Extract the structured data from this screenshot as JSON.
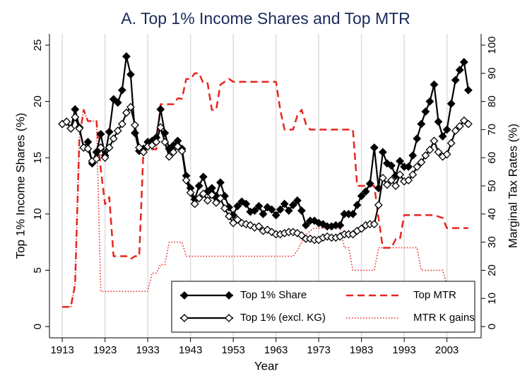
{
  "chart_data": {
    "type": "line",
    "title": "A. Top 1% Income Shares and Top MTR",
    "xlabel": "Year",
    "ylabel": "Top 1% Income Shares (%)",
    "y2label": "Marginal Tax Rates (%)",
    "x": [
      1913,
      1914,
      1915,
      1916,
      1917,
      1918,
      1919,
      1920,
      1921,
      1922,
      1923,
      1924,
      1925,
      1926,
      1927,
      1928,
      1929,
      1930,
      1931,
      1932,
      1933,
      1934,
      1935,
      1936,
      1937,
      1938,
      1939,
      1940,
      1941,
      1942,
      1943,
      1944,
      1945,
      1946,
      1947,
      1948,
      1949,
      1950,
      1951,
      1952,
      1953,
      1954,
      1955,
      1956,
      1957,
      1958,
      1959,
      1960,
      1961,
      1962,
      1963,
      1964,
      1965,
      1966,
      1967,
      1968,
      1969,
      1970,
      1971,
      1972,
      1973,
      1974,
      1975,
      1976,
      1977,
      1978,
      1979,
      1980,
      1981,
      1982,
      1983,
      1984,
      1985,
      1986,
      1987,
      1988,
      1989,
      1990,
      1991,
      1992,
      1993,
      1994,
      1995,
      1996,
      1997,
      1998,
      1999,
      2000,
      2001,
      2002,
      2003,
      2004,
      2005,
      2006,
      2007,
      2008
    ],
    "series": [
      {
        "name": "Top 1% Share",
        "color": "#000000",
        "style": "solid",
        "marker": "diamond-filled",
        "axis": "y",
        "values": [
          18.0,
          18.2,
          17.6,
          19.3,
          17.7,
          15.9,
          16.4,
          14.5,
          15.5,
          17.1,
          15.2,
          17.3,
          20.2,
          19.9,
          21.0,
          24.0,
          22.4,
          17.2,
          15.6,
          15.8,
          16.4,
          16.5,
          16.8,
          19.3,
          17.2,
          15.8,
          16.1,
          16.5,
          15.8,
          13.4,
          12.3,
          11.3,
          12.5,
          13.3,
          12.0,
          12.3,
          11.6,
          12.8,
          11.6,
          10.6,
          9.9,
          10.7,
          11.1,
          10.9,
          10.2,
          10.3,
          10.7,
          10.0,
          10.6,
          10.4,
          9.9,
          10.4,
          10.9,
          10.3,
          10.8,
          11.2,
          10.3,
          9.0,
          9.4,
          9.4,
          9.2,
          9.1,
          8.9,
          8.9,
          9.0,
          9.0,
          10.0,
          10.0,
          10.0,
          10.8,
          11.6,
          12.0,
          12.7,
          15.9,
          12.3,
          15.5,
          14.5,
          14.3,
          13.4,
          14.7,
          14.2,
          14.2,
          15.2,
          16.7,
          18.0,
          19.1,
          20.0,
          21.5,
          18.2,
          16.9,
          17.5,
          19.8,
          21.9,
          22.8,
          23.5,
          21.0
        ]
      },
      {
        "name": "Top 1% (excl. KG)",
        "color": "#000000",
        "style": "solid",
        "marker": "diamond-hollow",
        "axis": "y",
        "values": [
          18.0,
          18.2,
          17.6,
          18.6,
          17.6,
          15.9,
          15.8,
          14.7,
          14.9,
          15.9,
          15.0,
          15.9,
          16.7,
          17.4,
          18.0,
          19.0,
          19.5,
          17.9,
          15.9,
          15.5,
          16.0,
          16.1,
          16.4,
          17.7,
          16.4,
          15.1,
          15.5,
          16.0,
          15.6,
          13.0,
          11.9,
          10.9,
          11.4,
          11.8,
          11.2,
          11.7,
          11.0,
          11.4,
          10.5,
          9.8,
          9.2,
          9.5,
          9.2,
          9.1,
          9.0,
          8.8,
          8.9,
          8.5,
          8.6,
          8.4,
          8.2,
          8.2,
          8.3,
          8.4,
          8.4,
          8.3,
          8.1,
          7.8,
          7.8,
          7.7,
          7.7,
          7.9,
          8.0,
          7.9,
          7.9,
          8.0,
          8.2,
          8.2,
          8.2,
          8.5,
          8.7,
          9.0,
          9.1,
          9.1,
          10.8,
          13.2,
          12.6,
          13.0,
          12.5,
          13.5,
          12.9,
          13.0,
          13.5,
          14.2,
          14.6,
          15.2,
          15.7,
          16.5,
          15.5,
          15.1,
          15.3,
          16.3,
          17.4,
          17.8,
          18.3,
          18.0
        ]
      },
      {
        "name": "Top MTR",
        "color": "#e8251f",
        "style": "dashed",
        "axis": "y2",
        "values": [
          7,
          7,
          7,
          15,
          67,
          77,
          73,
          73,
          73,
          56,
          43.5,
          46,
          25,
          25,
          25,
          25,
          24,
          25,
          25,
          63,
          63,
          63,
          63,
          79,
          79,
          79,
          79,
          81.1,
          81,
          88,
          88,
          90,
          90,
          86.5,
          86.5,
          77,
          77,
          86,
          87,
          88,
          87,
          87,
          87,
          87,
          87,
          87,
          87,
          87,
          87,
          87,
          87,
          77,
          70,
          70,
          70,
          75,
          77,
          72,
          70,
          70,
          70,
          70,
          70,
          70,
          70,
          70,
          70,
          70,
          70,
          50,
          50,
          50,
          50,
          50,
          38.5,
          28,
          28,
          28,
          31,
          31,
          39.6,
          39.6,
          39.6,
          39.6,
          39.6,
          39.6,
          39.6,
          39.6,
          39.1,
          38.6,
          35,
          35,
          35,
          35,
          35,
          35
        ]
      },
      {
        "name": "MTR K gains",
        "color": "#e8251f",
        "style": "dotted",
        "axis": "y2",
        "values": [
          7,
          7,
          7,
          15,
          67,
          77,
          73,
          73,
          73,
          12.5,
          12.5,
          12.5,
          12.5,
          12.5,
          12.5,
          12.5,
          12.5,
          12.5,
          12.5,
          12.5,
          12.5,
          19,
          19,
          22,
          22,
          30,
          30,
          30,
          30,
          25,
          25,
          25,
          25,
          25,
          25,
          25,
          25,
          25,
          25,
          25,
          25,
          25,
          25,
          25,
          25,
          25,
          25,
          25,
          25,
          25,
          25,
          25,
          25,
          25,
          25,
          27,
          30,
          32.5,
          34,
          35,
          35,
          35,
          35,
          35,
          35,
          35,
          28,
          28,
          20,
          20,
          20,
          20,
          20,
          20,
          28,
          28,
          28,
          28,
          28,
          28,
          28,
          28,
          28,
          28,
          20,
          20,
          20,
          20,
          20,
          20,
          15,
          15,
          15,
          15,
          15,
          15
        ]
      }
    ],
    "xlim": [
      1910,
      2011
    ],
    "xticks": [
      1913,
      1923,
      1933,
      1943,
      1953,
      1963,
      1973,
      1983,
      1993,
      2003
    ],
    "ylim": [
      -1,
      26
    ],
    "yticks": [
      0,
      5,
      10,
      15,
      20,
      25
    ],
    "y2lim": [
      -4,
      104
    ],
    "y2ticks": [
      0,
      10,
      20,
      30,
      40,
      50,
      60,
      70,
      80,
      90,
      100
    ],
    "xgrid": true,
    "legend": "bottom right"
  }
}
